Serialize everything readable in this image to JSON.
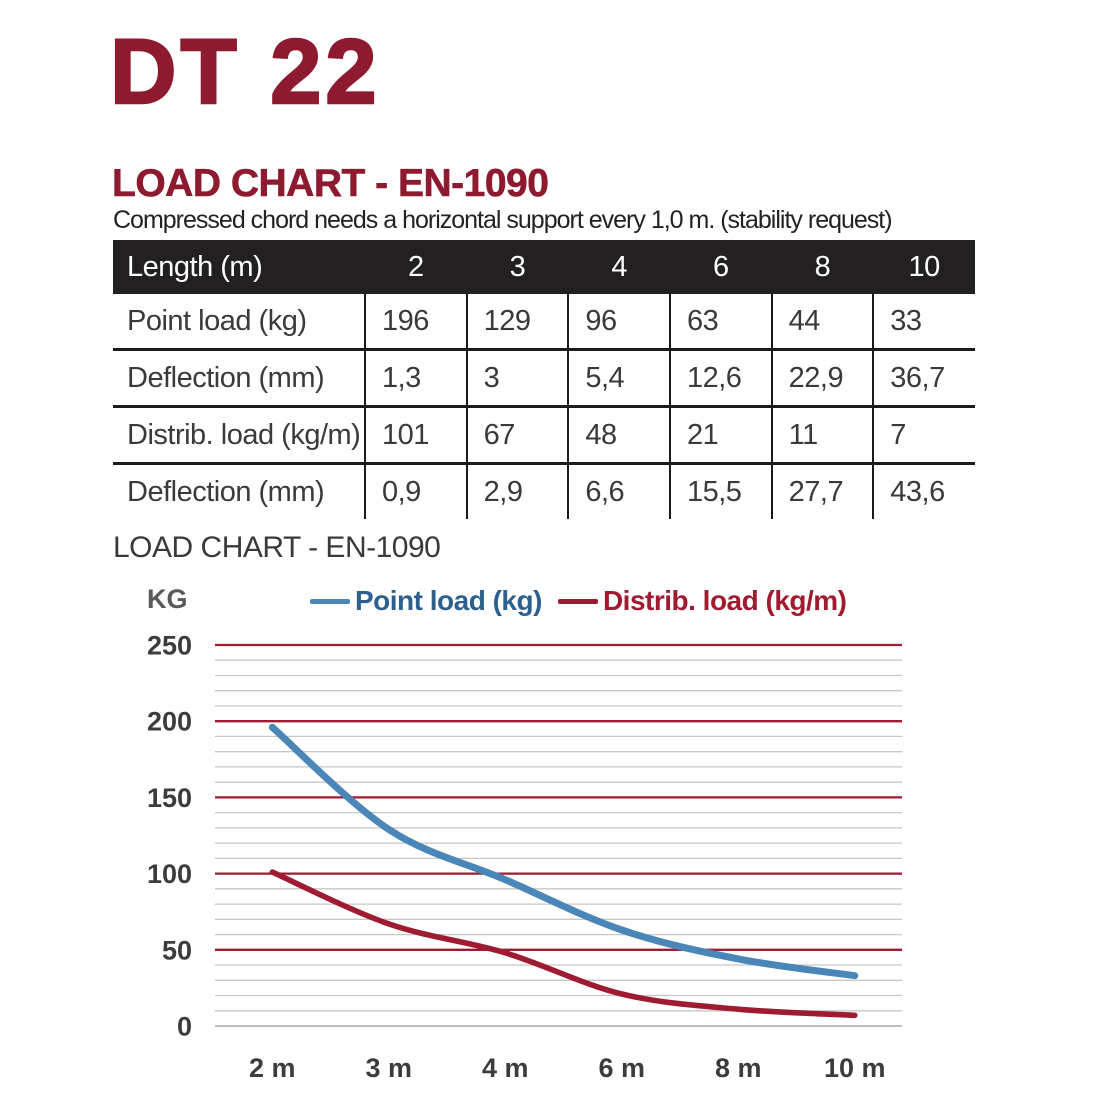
{
  "page": {
    "product_title": "DT 22",
    "heading": "LOAD CHART - EN-1090",
    "subtitle": "Compressed chord needs a horizontal support every 1,0 m. (stability request)",
    "chart_section_title": "LOAD CHART - EN-1090"
  },
  "table": {
    "header": {
      "label": "Length (m)",
      "columns": [
        "2",
        "3",
        "4",
        "6",
        "8",
        "10"
      ]
    },
    "rows": [
      {
        "label": "Point load (kg)",
        "values": [
          "196",
          "129",
          "96",
          "63",
          "44",
          "33"
        ]
      },
      {
        "label": "Deflection (mm)",
        "values": [
          "1,3",
          "3",
          "5,4",
          "12,6",
          "22,9",
          "36,7"
        ]
      },
      {
        "label": "Distrib. load (kg/m)",
        "values": [
          "101",
          "67",
          "48",
          "21",
          "11",
          "7"
        ]
      },
      {
        "label": "Deflection (mm)",
        "values": [
          "0,9",
          "2,9",
          "6,6",
          "15,5",
          "27,7",
          "43,6"
        ]
      }
    ]
  },
  "chart_data": {
    "type": "line",
    "title": "LOAD CHART - EN-1090",
    "ylabel": "KG",
    "xlabel": "",
    "categories": [
      "2 m",
      "3 m",
      "4 m",
      "6 m",
      "8 m",
      "10 m"
    ],
    "series": [
      {
        "name": "Point load (kg)",
        "values": [
          196,
          129,
          96,
          63,
          44,
          33
        ],
        "color": "#4a86b8"
      },
      {
        "name": "Distrib. load (kg/m)",
        "values": [
          101,
          67,
          48,
          21,
          11,
          7
        ],
        "color": "#9e1b32"
      }
    ],
    "ylim": [
      0,
      250
    ],
    "y_major_step": 50,
    "y_minor_step": 10,
    "grid": true,
    "legend_position": "top",
    "curve_smoothing": true
  },
  "colors": {
    "brand_maroon": "#8e1a30",
    "table_header_bg": "#232021",
    "grid_major_red": "#9e1b32",
    "grid_minor_gray": "#c7c7c7",
    "zero_line_gray": "#b5b5b5",
    "point_load_blue": "#4a86b8",
    "distrib_load_red": "#9e1b32",
    "legend_blue_text": "#2d608c",
    "legend_red_text": "#a11b30"
  }
}
